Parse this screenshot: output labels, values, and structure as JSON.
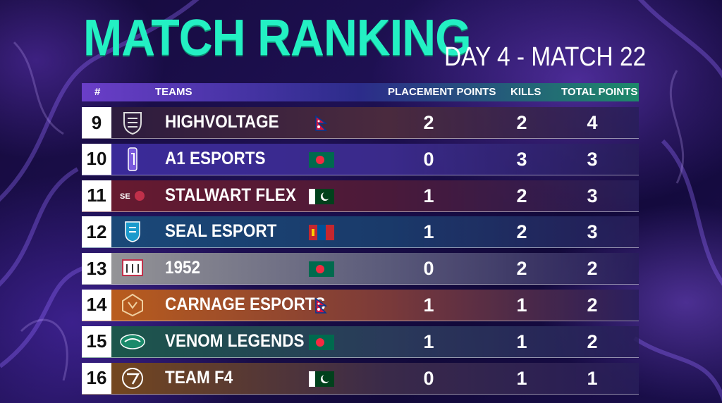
{
  "title": "MATCH RANKING",
  "subtitle": "DAY 4 - MATCH 22",
  "columns": {
    "rank": "#",
    "teams": "TEAMS",
    "placement": "PLACEMENT POINTS",
    "kills": "KILLS",
    "total": "TOTAL POINTS"
  },
  "rows": [
    {
      "rank": "9",
      "team": "HIGHVOLTAGE",
      "flag": "nepal-flag-icon",
      "placement": "2",
      "kills": "2",
      "total": "4"
    },
    {
      "rank": "10",
      "team": "A1 ESPORTS",
      "flag": "bangladesh-flag-icon",
      "placement": "0",
      "kills": "3",
      "total": "3"
    },
    {
      "rank": "11",
      "team": "STALWART FLEX",
      "flag": "pakistan-flag-icon",
      "placement": "1",
      "kills": "2",
      "total": "3"
    },
    {
      "rank": "12",
      "team": "SEAL ESPORT",
      "flag": "mongolia-flag-icon",
      "placement": "1",
      "kills": "2",
      "total": "3"
    },
    {
      "rank": "13",
      "team": "1952",
      "flag": "bangladesh-flag-icon",
      "placement": "0",
      "kills": "2",
      "total": "2"
    },
    {
      "rank": "14",
      "team": "CARNAGE ESPORTS",
      "flag": "nepal-flag-icon",
      "placement": "1",
      "kills": "1",
      "total": "2"
    },
    {
      "rank": "15",
      "team": "VENOM LEGENDS",
      "flag": "bangladesh-flag-icon",
      "placement": "1",
      "kills": "1",
      "total": "2"
    },
    {
      "rank": "16",
      "team": "TEAM F4",
      "flag": "pakistan-flag-icon",
      "placement": "0",
      "kills": "1",
      "total": "1"
    }
  ],
  "colors": {
    "title": "#23f0c3",
    "row_accents": [
      "#4a2a3e",
      "#3a2a9a",
      "#6a1a2e",
      "#1a4a7a",
      "#8a8a8a",
      "#b0501a",
      "#1a5a4a",
      "#7a4a1a"
    ]
  }
}
